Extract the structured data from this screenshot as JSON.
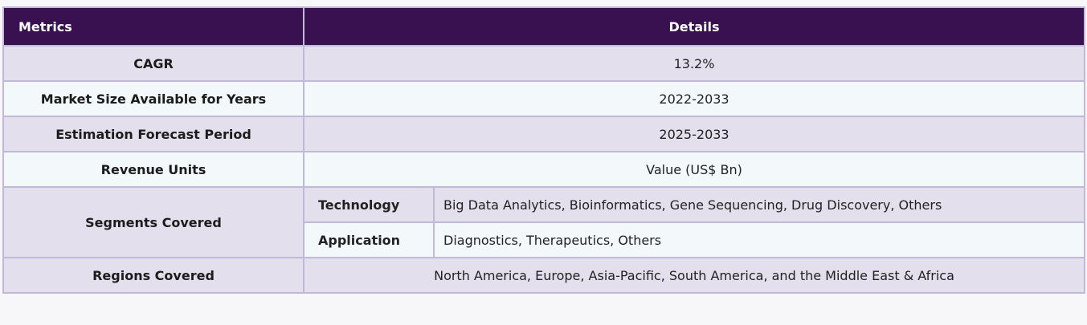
{
  "header": {
    "col1": "Metrics",
    "col2": "Details"
  },
  "rows": [
    {
      "metric": "CAGR",
      "value": "13.2%"
    },
    {
      "metric": "Market Size Available for Years",
      "value": "2022-2033"
    },
    {
      "metric": "Estimation Forecast Period",
      "value": "2025-2033"
    },
    {
      "metric": "Revenue Units",
      "value": "Value (US$ Bn)"
    }
  ],
  "segments": {
    "metric": "Segments Covered",
    "items": [
      {
        "label": "Technology",
        "value": "Big Data Analytics, Bioinformatics, Gene Sequencing, Drug Discovery, Others"
      },
      {
        "label": "Application",
        "value": "Diagnostics, Therapeutics, Others"
      }
    ]
  },
  "regions": {
    "metric": "Regions Covered",
    "value": "North America, Europe, Asia-Pacific, South America, and the Middle East & Africa"
  }
}
